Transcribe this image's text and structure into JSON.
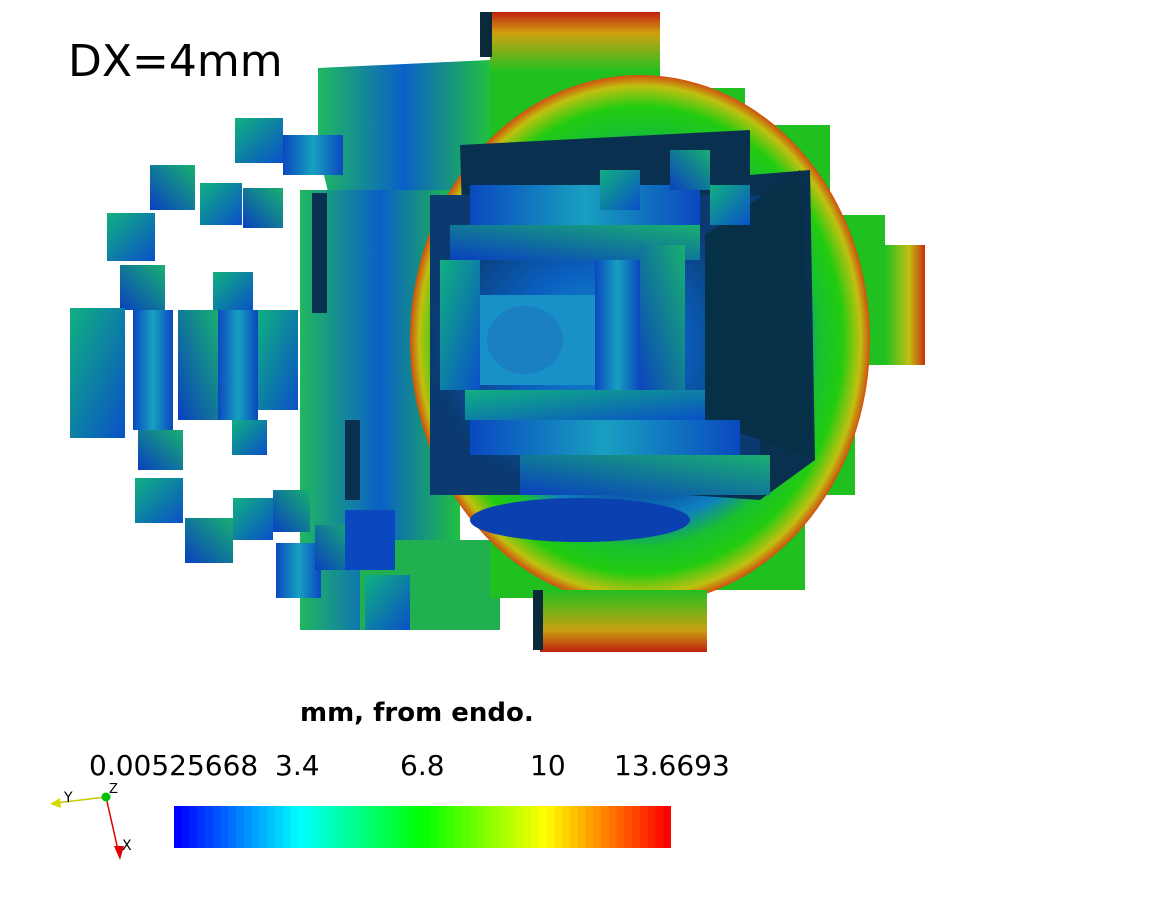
{
  "viewport": {
    "overlay_text": "DX=4mm"
  },
  "scalar_bar": {
    "title": "mm, from endo.",
    "ticks": [
      "0.00525668",
      "3.4",
      "6.8",
      "10",
      "13.6693"
    ],
    "range": [
      0.00525668,
      13.6693
    ],
    "colormap": [
      "#0000ff",
      "#00ffff",
      "#00ff00",
      "#ffff00",
      "#ff0000"
    ]
  },
  "orientation_axes": {
    "labels": {
      "x": "X",
      "y": "Y",
      "z": "Z"
    },
    "colors": {
      "x": "#e00000",
      "y": "#e0e000",
      "z": "#00c000"
    }
  },
  "surface_colors": {
    "dark_blue": "#013a5a",
    "blue": "#0a55d0",
    "teal": "#10a0b0",
    "green": "#18c020",
    "orange": "#e06010",
    "red": "#c02010"
  }
}
